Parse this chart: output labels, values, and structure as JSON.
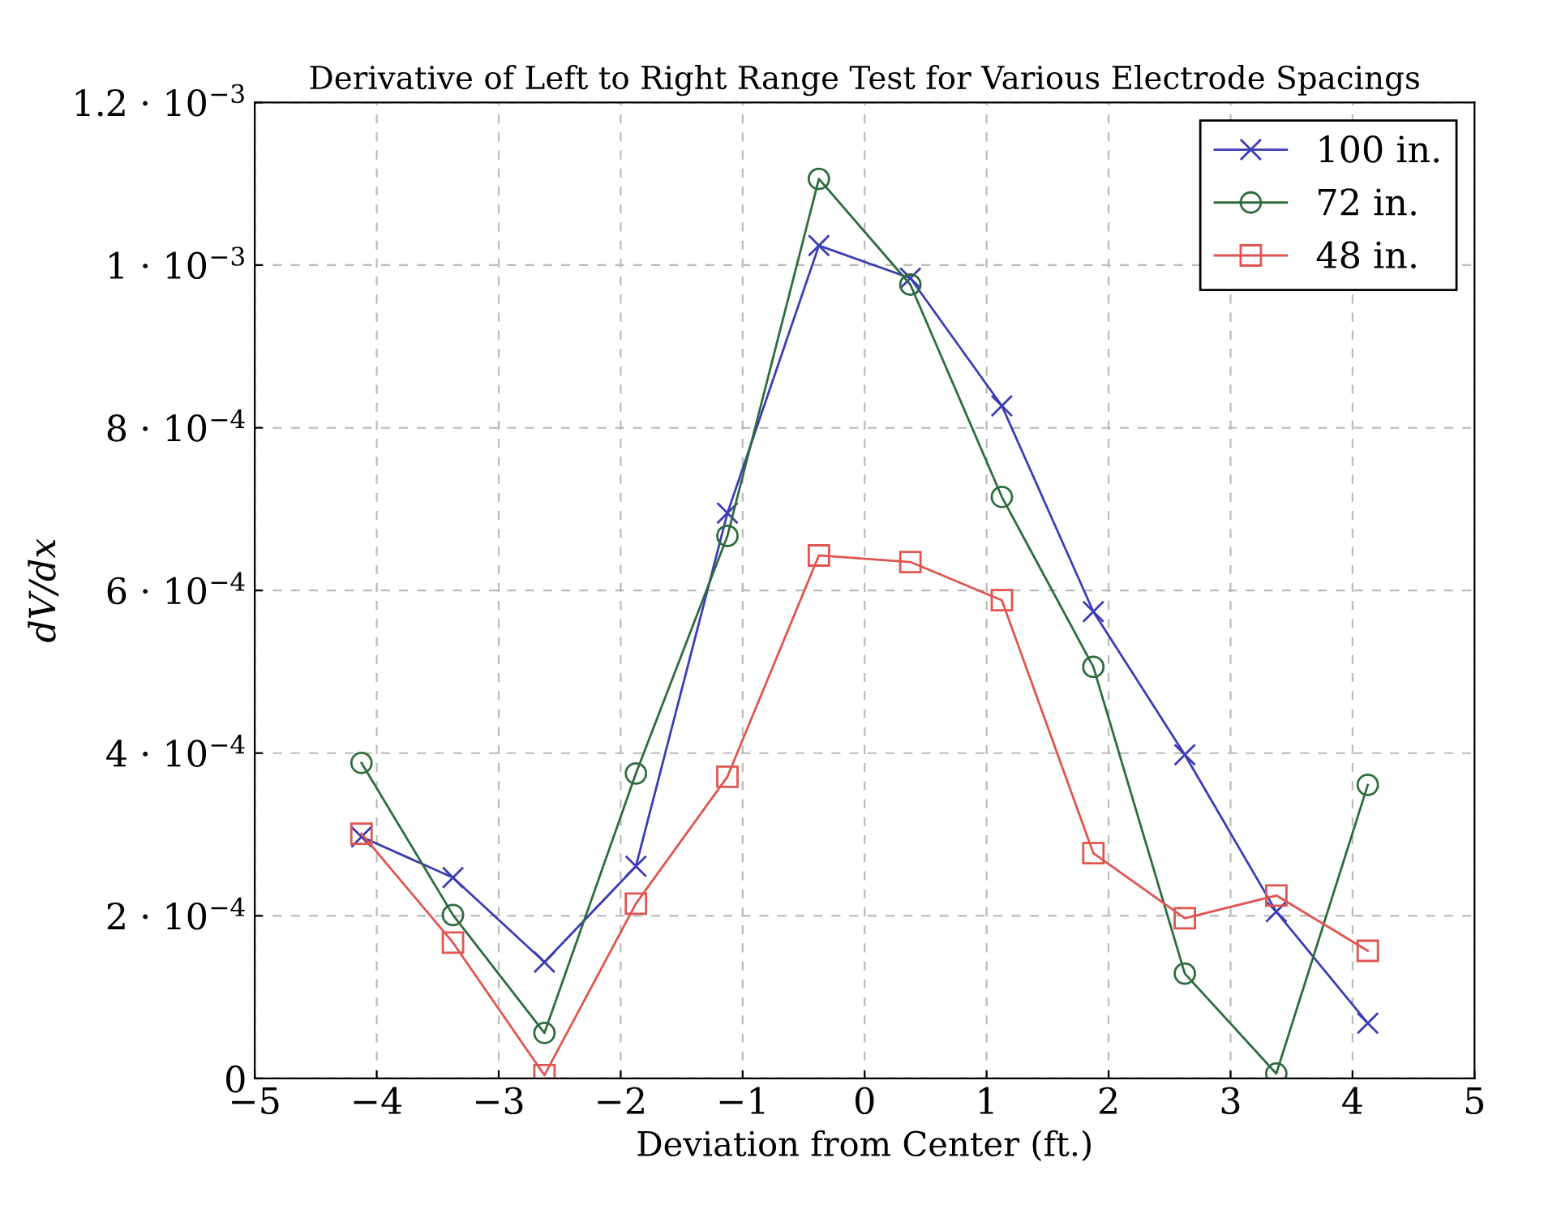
{
  "chart_data": {
    "type": "line",
    "title": "Derivative of Left to Right Range Test for Various Electrode Spacings",
    "xlabel": "Deviation from Center (ft.)",
    "ylabel": "dV/dx",
    "x": [
      -4.125,
      -3.375,
      -2.625,
      -1.875,
      -1.125,
      -0.375,
      0.375,
      1.125,
      1.875,
      2.625,
      3.375,
      4.125
    ],
    "series": [
      {
        "name": "100 in.",
        "color": "#3c3cb4",
        "marker": "cross",
        "values": [
          0.000297,
          0.000247,
          0.000143,
          0.000261,
          0.000695,
          0.001024,
          0.000984,
          0.000827,
          0.000574,
          0.000398,
          0.000205,
          6.8e-05
        ]
      },
      {
        "name": "72 in.",
        "color": "#2e6b3e",
        "marker": "circle",
        "values": [
          0.000388,
          0.000201,
          5.6e-05,
          0.000375,
          0.000667,
          0.001106,
          0.000976,
          0.000715,
          0.000506,
          0.000129,
          6e-06,
          0.000361
        ]
      },
      {
        "name": "48 in.",
        "color": "#e05550",
        "marker": "square",
        "values": [
          0.000301,
          0.000167,
          4e-06,
          0.000215,
          0.000371,
          0.000643,
          0.000635,
          0.000588,
          0.000277,
          0.000197,
          0.000225,
          0.000157
        ]
      }
    ],
    "xlim": [
      -5,
      5
    ],
    "xticks": [
      {
        "value": -5,
        "label": "−5"
      },
      {
        "value": -4,
        "label": "−4"
      },
      {
        "value": -3,
        "label": "−3"
      },
      {
        "value": -2,
        "label": "−2"
      },
      {
        "value": -1,
        "label": "−1"
      },
      0,
      1,
      2,
      3,
      4,
      5
    ],
    "ylim": [
      0,
      0.0012
    ],
    "yticks": [
      0,
      {
        "value": 0.0002,
        "label": "2 · 10$^{−4}$"
      },
      {
        "value": 0.0004,
        "label": "4 · 10$^{−4}$"
      },
      {
        "value": 0.0006,
        "label": "6 · 10$^{−4}$"
      },
      {
        "value": 0.0008,
        "label": "8 · 10$^{−4}$"
      },
      {
        "value": 0.001,
        "label": "1 · 10$^{−3}$"
      },
      {
        "value": 0.0012,
        "label": "1.2 · 10$^{−3}$"
      }
    ],
    "grid": true,
    "legend": "top right",
    "line_style": "solid"
  }
}
